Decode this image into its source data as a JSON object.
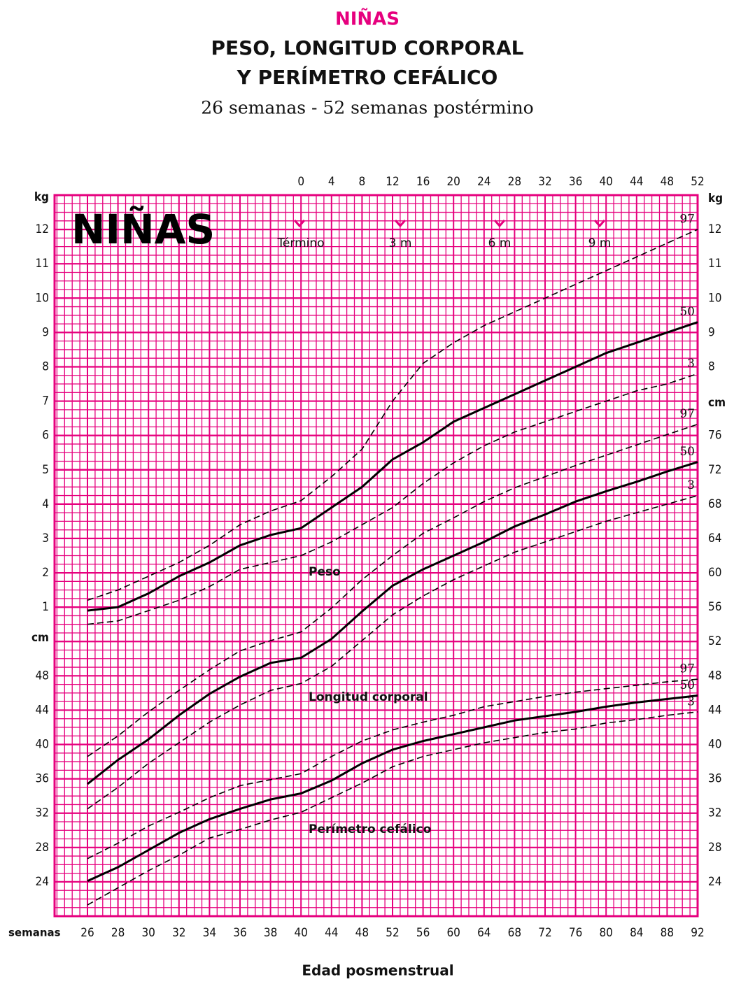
{
  "chart_data": {
    "type": "line",
    "title": "NIÑAS",
    "subtitle": [
      "PESO, LONGITUD CORPORAL",
      "Y PERÍMETRO CEFÁLICO",
      "26 semanas - 52 semanas postérmino"
    ],
    "chart_label": "NIÑAS",
    "xlabel": "Edad posmenstrual",
    "xlabel_unit": "semanas",
    "categories": [
      "26",
      "28",
      "30",
      "32",
      "34",
      "36",
      "38",
      "40",
      "44",
      "48",
      "52",
      "56",
      "60",
      "64",
      "68",
      "72",
      "76",
      "80",
      "84",
      "88",
      "92"
    ],
    "top_categories": [
      "0",
      "4",
      "8",
      "12",
      "16",
      "20",
      "24",
      "28",
      "32",
      "36",
      "40",
      "44",
      "48",
      "52"
    ],
    "ylabel": "cm",
    "y2label": "kg",
    "ylim": [
      20,
      104
    ],
    "y2lim": [
      -8,
      13
    ],
    "yticks_left": [
      24,
      28,
      32,
      36,
      40,
      44,
      48
    ],
    "yticks_right": [
      24,
      28,
      32,
      36,
      40,
      44,
      48,
      52,
      56,
      60,
      64,
      68,
      72,
      76
    ],
    "y2ticks_left": [
      1,
      2,
      3,
      4,
      5,
      6,
      7,
      8,
      9,
      10,
      11,
      12
    ],
    "y2ticks_right": [
      8,
      9,
      10,
      11,
      12
    ],
    "grid": true,
    "grid_color": "#e6007e",
    "annotations": [
      "Término",
      "3 m",
      "6 m",
      "9 m",
      "Peso",
      "Longitud corporal",
      "Perímetro cefálico"
    ],
    "series": [
      {
        "name": "97",
        "color": "#000000",
        "style": "dashed",
        "axis": "y2",
        "values": [
          1.2,
          1.5,
          1.9,
          2.3,
          2.8,
          3.4,
          3.8,
          4.1,
          4.8,
          5.6,
          7.0,
          8.1,
          8.7,
          9.2,
          9.6,
          10.0,
          10.4,
          10.8,
          11.2,
          11.6,
          12.0
        ]
      },
      {
        "name": "50",
        "color": "#000000",
        "style": "solid",
        "axis": "y2",
        "values": [
          0.9,
          1.0,
          1.4,
          1.9,
          2.3,
          2.8,
          3.1,
          3.3,
          3.9,
          4.5,
          5.3,
          5.8,
          6.4,
          6.8,
          7.2,
          7.6,
          8.0,
          8.4,
          8.7,
          9.0,
          9.3
        ]
      },
      {
        "name": "3",
        "color": "#000000",
        "style": "dashed",
        "axis": "y2",
        "values": [
          0.5,
          0.6,
          0.9,
          1.2,
          1.6,
          2.1,
          2.3,
          2.5,
          2.9,
          3.4,
          3.9,
          4.6,
          5.2,
          5.7,
          6.1,
          6.4,
          6.7,
          7.0,
          7.3,
          7.5,
          7.8
        ]
      },
      {
        "name": "97",
        "color": "#000000",
        "style": "dashed",
        "values": [
          38.6,
          41.0,
          43.8,
          46.3,
          48.7,
          50.9,
          52.1,
          53.1,
          55.9,
          59.2,
          62.0,
          64.6,
          66.4,
          68.3,
          69.9,
          71.2,
          72.5,
          73.7,
          74.9,
          76.1,
          77.3
        ]
      },
      {
        "name": "50",
        "color": "#000000",
        "style": "solid",
        "values": [
          35.4,
          38.2,
          40.6,
          43.4,
          45.9,
          47.9,
          49.5,
          50.1,
          52.3,
          55.5,
          58.5,
          60.4,
          62.0,
          63.6,
          65.4,
          66.8,
          68.3,
          69.5,
          70.6,
          71.8,
          72.9
        ]
      },
      {
        "name": "3",
        "color": "#000000",
        "style": "dashed",
        "values": [
          32.5,
          35.0,
          37.8,
          40.2,
          42.6,
          44.6,
          46.3,
          47.1,
          49.1,
          52.1,
          55.1,
          57.3,
          59.2,
          60.8,
          62.4,
          63.6,
          64.8,
          66.0,
          67.0,
          68.0,
          69.0
        ]
      },
      {
        "name": "97",
        "color": "#000000",
        "style": "dashed",
        "values": [
          26.7,
          28.5,
          30.5,
          32.1,
          33.8,
          35.2,
          35.9,
          36.6,
          38.6,
          40.4,
          41.7,
          42.6,
          43.4,
          44.4,
          45.0,
          45.6,
          46.1,
          46.5,
          46.9,
          47.3,
          47.6
        ]
      },
      {
        "name": "50",
        "color": "#000000",
        "style": "solid",
        "values": [
          24.1,
          25.7,
          27.7,
          29.7,
          31.3,
          32.5,
          33.6,
          34.3,
          35.8,
          37.8,
          39.4,
          40.4,
          41.2,
          42.0,
          42.8,
          43.3,
          43.8,
          44.4,
          44.9,
          45.3,
          45.7
        ]
      },
      {
        "name": "3",
        "color": "#000000",
        "style": "dashed",
        "values": [
          21.3,
          23.3,
          25.3,
          27.1,
          29.1,
          30.1,
          31.2,
          32.1,
          33.8,
          35.5,
          37.4,
          38.6,
          39.4,
          40.2,
          40.8,
          41.4,
          41.8,
          42.5,
          42.9,
          43.4,
          43.8
        ]
      }
    ]
  }
}
